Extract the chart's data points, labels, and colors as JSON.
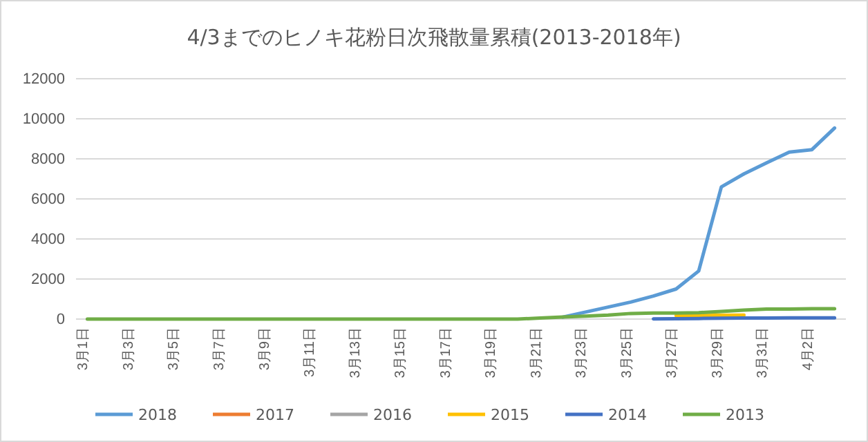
{
  "chart_data": {
    "type": "line",
    "title": "4/3までのヒノキ花粉日次飛散量累積(2013-2018年)",
    "categories": [
      "3月1日",
      null,
      "3月3日",
      null,
      "3月5日",
      null,
      "3月7日",
      null,
      "3月9日",
      null,
      "3月11日",
      null,
      "3月13日",
      null,
      "3月15日",
      null,
      "3月17日",
      null,
      "3月19日",
      null,
      "3月21日",
      null,
      "3月23日",
      null,
      "3月25日",
      null,
      "3月27日",
      null,
      "3月29日",
      null,
      "3月31日",
      null,
      "4月2日",
      null
    ],
    "series": [
      {
        "name": "2018",
        "color": "#5b9bd5",
        "values": [
          null,
          null,
          null,
          null,
          null,
          null,
          null,
          null,
          null,
          null,
          null,
          null,
          null,
          null,
          null,
          null,
          null,
          null,
          null,
          null,
          null,
          100,
          350,
          600,
          850,
          1150,
          1500,
          2400,
          6600,
          7250,
          7800,
          8340,
          8460,
          9540
        ]
      },
      {
        "name": "2017",
        "color": "#ed7d31",
        "values": [
          null,
          null,
          null,
          null,
          null,
          null,
          null,
          null,
          null,
          null,
          null,
          null,
          null,
          null,
          null,
          null,
          null,
          null,
          null,
          null,
          null,
          null,
          null,
          null,
          null,
          null,
          null,
          null,
          null,
          null,
          null,
          null,
          null,
          null
        ]
      },
      {
        "name": "2016",
        "color": "#a5a5a5",
        "values": [
          null,
          null,
          null,
          null,
          null,
          null,
          null,
          null,
          null,
          null,
          null,
          null,
          null,
          null,
          null,
          null,
          null,
          null,
          null,
          null,
          null,
          null,
          null,
          null,
          null,
          null,
          null,
          null,
          null,
          null,
          null,
          null,
          null,
          null
        ]
      },
      {
        "name": "2015",
        "color": "#ffc000",
        "values": [
          null,
          null,
          null,
          null,
          null,
          null,
          null,
          null,
          null,
          null,
          null,
          null,
          null,
          null,
          null,
          null,
          null,
          null,
          null,
          null,
          null,
          null,
          null,
          null,
          null,
          null,
          170,
          180,
          190,
          200,
          null,
          null,
          null,
          null
        ]
      },
      {
        "name": "2014",
        "color": "#4472c4",
        "values": [
          null,
          null,
          null,
          null,
          null,
          null,
          null,
          null,
          null,
          null,
          null,
          null,
          null,
          null,
          null,
          null,
          null,
          null,
          null,
          null,
          null,
          null,
          null,
          null,
          null,
          10,
          20,
          30,
          40,
          50,
          50,
          60,
          60,
          60
        ]
      },
      {
        "name": "2013",
        "color": "#70ad47",
        "values": [
          0,
          0,
          0,
          0,
          0,
          0,
          0,
          0,
          0,
          0,
          0,
          0,
          0,
          0,
          0,
          0,
          0,
          0,
          0,
          0,
          50,
          100,
          150,
          200,
          280,
          300,
          300,
          320,
          380,
          450,
          500,
          500,
          520,
          520
        ]
      }
    ],
    "ylim": [
      0,
      12000
    ],
    "yticks": [
      0,
      2000,
      4000,
      6000,
      8000,
      10000,
      12000
    ],
    "grid": "y",
    "legend": "bottom",
    "marker": "none",
    "line_style": "solid"
  }
}
